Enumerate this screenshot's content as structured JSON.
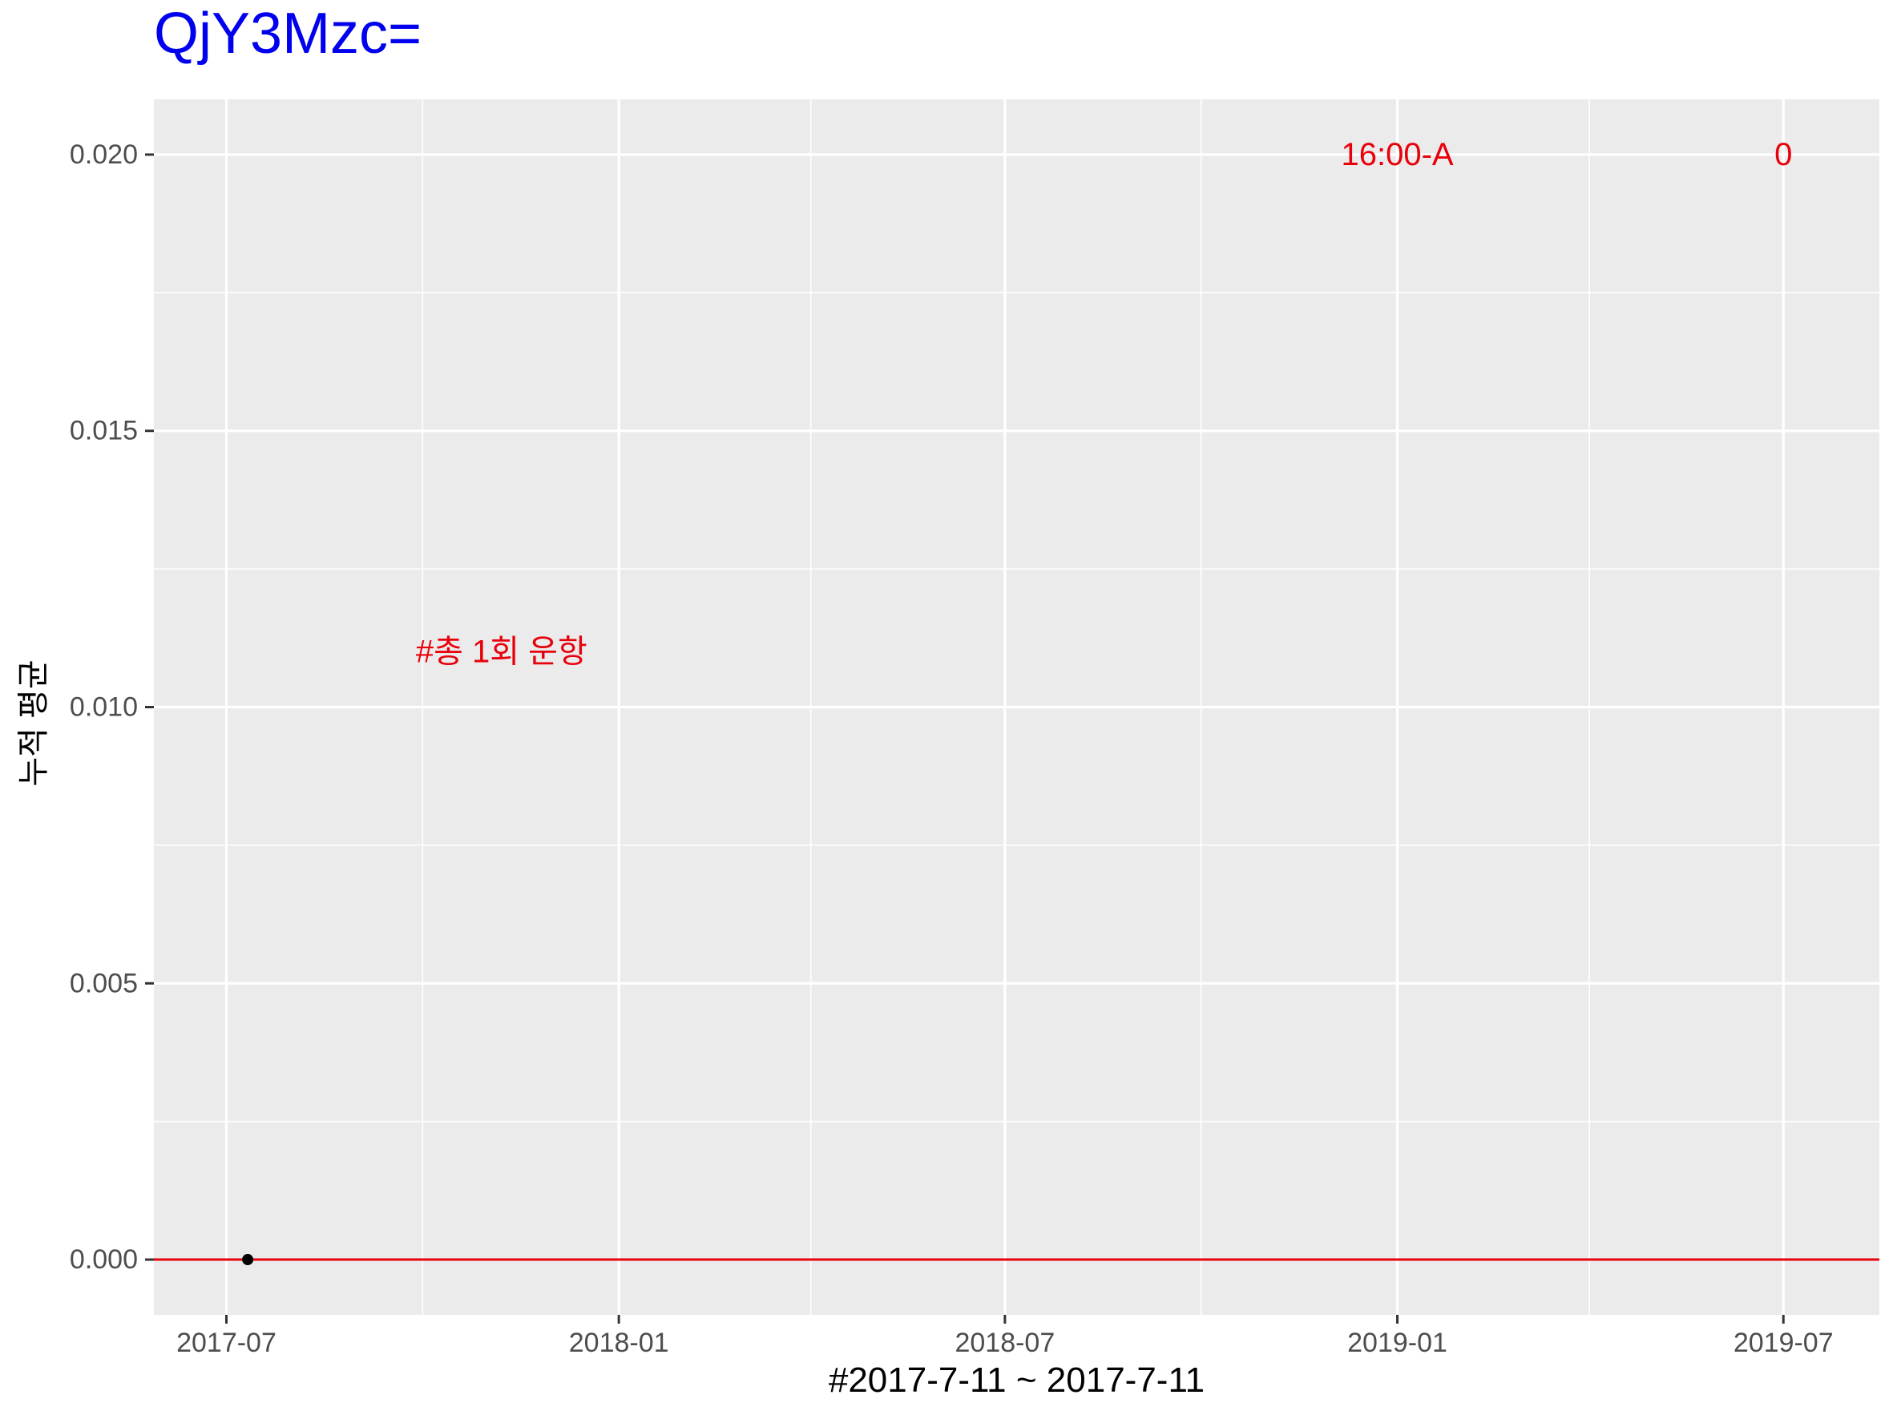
{
  "chart_data": {
    "type": "scatter",
    "title": "QjY3Mzc=",
    "xlabel": "#2017-7-11 ~ 2017-7-11",
    "ylabel": "누적 평균",
    "x_type": "date",
    "xlim": [
      "2017-05-28",
      "2019-08-15"
    ],
    "ylim": [
      -0.001,
      0.021
    ],
    "x_ticks": [
      {
        "value": "2017-07-01",
        "label": "2017-07"
      },
      {
        "value": "2018-01-01",
        "label": "2018-01"
      },
      {
        "value": "2018-07-01",
        "label": "2018-07"
      },
      {
        "value": "2019-01-01",
        "label": "2019-01"
      },
      {
        "value": "2019-07-01",
        "label": "2019-07"
      }
    ],
    "x_minor_ticks": [
      "2017-10-01",
      "2018-04-01",
      "2018-10-01",
      "2019-04-01"
    ],
    "y_ticks": [
      {
        "value": 0.0,
        "label": "0.000"
      },
      {
        "value": 0.005,
        "label": "0.005"
      },
      {
        "value": 0.01,
        "label": "0.010"
      },
      {
        "value": 0.015,
        "label": "0.015"
      },
      {
        "value": 0.02,
        "label": "0.020"
      }
    ],
    "y_minor_ticks": [
      0.0025,
      0.0075,
      0.0125,
      0.0175
    ],
    "series": [
      {
        "points": [
          {
            "x": "2017-07-11",
            "y": 0.0
          }
        ],
        "color": "#000000"
      }
    ],
    "hlines": [
      {
        "y": 0.0,
        "color": "#e8000b"
      }
    ],
    "annotations": [
      {
        "text": "#총 1회 운항",
        "x": "2017-11-07",
        "y": 0.011,
        "color": "#e8000b"
      },
      {
        "text": "16:00-A",
        "x": "2019-01-01",
        "y": 0.02,
        "color": "#e8000b"
      },
      {
        "text": "0",
        "x": "2019-07-01",
        "y": 0.02,
        "color": "#e8000b"
      }
    ],
    "grid": true,
    "colors": {
      "title": "#0000ee",
      "panel_background": "#ebebeb",
      "grid_line": "#ffffff",
      "tick_label": "#4d4d4d",
      "axis_title": "#000000"
    }
  }
}
